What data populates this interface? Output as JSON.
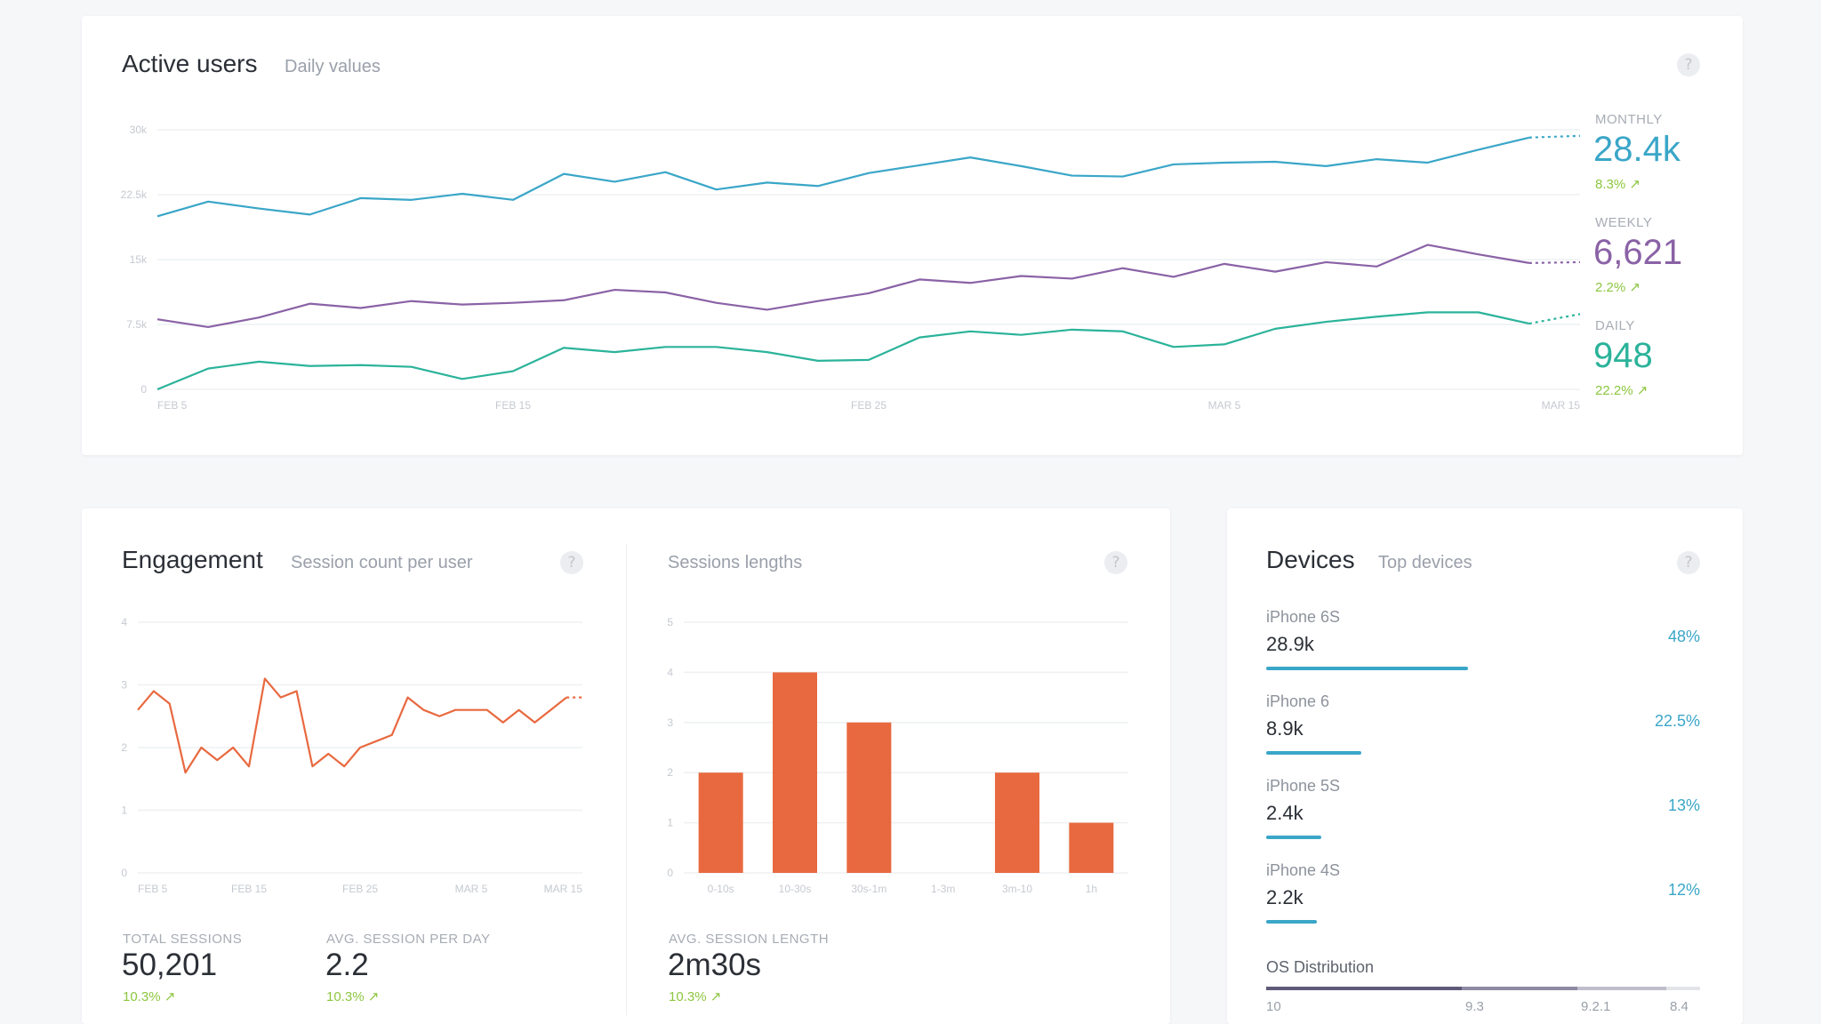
{
  "colors": {
    "monthly": "#3aa6c8",
    "weekly": "#8a62a6",
    "daily": "#2bb39a",
    "engagement": "#e8693f",
    "positive": "#8cc63f",
    "grid": "#eef0f3"
  },
  "active_users": {
    "title": "Active users",
    "subtitle": "Daily values",
    "help": "?",
    "stats": [
      {
        "label": "MONTHLY",
        "value": "28.4k",
        "change": "8.3% ↗"
      },
      {
        "label": "WEEKLY",
        "value": "6,621",
        "change": "2.2% ↗"
      },
      {
        "label": "DAILY",
        "value": "948",
        "change": "22.2% ↗"
      }
    ]
  },
  "engagement": {
    "title": "Engagement",
    "subtitle": "Session count per user",
    "help": "?",
    "kpis": [
      {
        "label": "TOTAL SESSIONS",
        "value": "50,201",
        "change": "10.3% ↗"
      },
      {
        "label": "AVG. SESSION PER DAY",
        "value": "2.2",
        "change": "10.3% ↗"
      }
    ]
  },
  "sessions": {
    "title": "Sessions lengths",
    "help": "?",
    "kpi": {
      "label": "AVG. SESSION LENGTH",
      "value": "2m30s",
      "change": "10.3% ↗"
    }
  },
  "devices": {
    "title": "Devices",
    "subtitle": "Top devices",
    "help": "?",
    "items": [
      {
        "name": "iPhone 6S",
        "value": "28.9k",
        "pct": "48%",
        "share": 0.48
      },
      {
        "name": "iPhone 6",
        "value": "8.9k",
        "pct": "22.5%",
        "share": 0.225
      },
      {
        "name": "iPhone 5S",
        "value": "2.4k",
        "pct": "13%",
        "share": 0.13
      },
      {
        "name": "iPhone 4S",
        "value": "2.2k",
        "pct": "12%",
        "share": 0.12
      }
    ],
    "os_title": "OS Distribution",
    "os_ticks": [
      "10",
      "9.3",
      "9.2.1",
      "8.4"
    ]
  },
  "chart_data": [
    {
      "id": "active-users",
      "type": "line",
      "ylim": [
        0,
        30000
      ],
      "yticks": [
        "30k",
        "22.5k",
        "15k",
        "7.5k",
        "0"
      ],
      "xticks": [
        "FEB 5",
        "FEB 15",
        "FEB 25",
        "MAR 5",
        "MAR 15"
      ],
      "series": [
        {
          "name": "MONTHLY",
          "values": [
            20000,
            21700,
            20900,
            20200,
            22100,
            21900,
            22600,
            21900,
            24900,
            24000,
            25100,
            23100,
            23900,
            23500,
            25000,
            25900,
            26800,
            25800,
            24700,
            24600,
            26000,
            26200,
            26300,
            25800,
            26600,
            26200,
            27700,
            29100,
            29300
          ]
        },
        {
          "name": "WEEKLY",
          "values": [
            8100,
            7200,
            8300,
            9900,
            9400,
            10200,
            9800,
            10000,
            10300,
            11500,
            11200,
            10000,
            9200,
            10200,
            11100,
            12700,
            12300,
            13100,
            12800,
            14000,
            13000,
            14500,
            13600,
            14700,
            14200,
            16700,
            15600,
            14600,
            14700
          ]
        },
        {
          "name": "DAILY",
          "values": [
            0,
            2400,
            3200,
            2700,
            2800,
            2600,
            1200,
            2100,
            4800,
            4300,
            4900,
            4900,
            4300,
            3300,
            3400,
            6000,
            6700,
            6300,
            6900,
            6700,
            4900,
            5200,
            7000,
            7800,
            8400,
            8900,
            8900,
            7600,
            8700
          ]
        }
      ]
    },
    {
      "id": "engagement",
      "type": "line",
      "ylim": [
        0,
        4
      ],
      "yticks": [
        "4",
        "3",
        "2",
        "1",
        "0"
      ],
      "xticks": [
        "FEB 5",
        "FEB 15",
        "FEB 25",
        "MAR 5",
        "MAR 15"
      ],
      "series": [
        {
          "name": "",
          "values": [
            2.6,
            2.9,
            2.7,
            1.6,
            2.0,
            1.8,
            2.0,
            1.7,
            3.1,
            2.8,
            2.9,
            1.7,
            1.9,
            1.7,
            2.0,
            2.1,
            2.2,
            2.8,
            2.6,
            2.5,
            2.6,
            2.6,
            2.6,
            2.4,
            2.6,
            2.4,
            2.6,
            2.8,
            2.8
          ]
        }
      ]
    },
    {
      "id": "sessions",
      "type": "bar",
      "ylim": [
        0,
        5
      ],
      "yticks": [
        "5",
        "4",
        "3",
        "2",
        "1",
        "0"
      ],
      "categories": [
        "0-10s",
        "10-30s",
        "30s-1m",
        "1-3m",
        "3m-10",
        "1h"
      ],
      "values": [
        2,
        4,
        3,
        0,
        2,
        1
      ]
    }
  ]
}
